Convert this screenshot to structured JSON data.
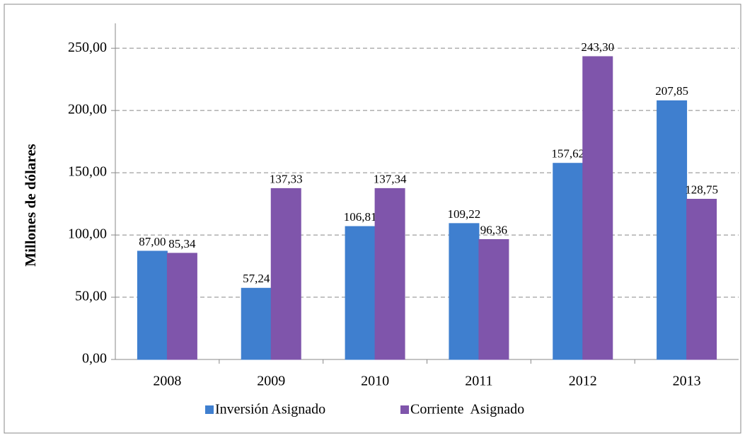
{
  "chart_data": {
    "type": "bar",
    "y_label": "Millones de dólares",
    "categories": [
      "2008",
      "2009",
      "2010",
      "2011",
      "2012",
      "2013"
    ],
    "series": [
      {
        "name": "Inversión Asignado",
        "color": "#3f7fcf",
        "values": [
          87.0,
          57.24,
          106.81,
          109.22,
          157.62,
          207.85
        ],
        "value_labels": [
          "87,00",
          "57,24",
          "106,81",
          "109,22",
          "157,62",
          "207,85"
        ]
      },
      {
        "name": "Corriente  Asignado",
        "color": "#7f55ab",
        "values": [
          85.34,
          137.33,
          137.34,
          96.36,
          243.3,
          128.75
        ],
        "value_labels": [
          "85,34",
          "137,33",
          "137,34",
          "96,36",
          "243,30",
          "128,75"
        ]
      }
    ],
    "ylim": [
      0,
      270
    ],
    "yticks": [
      {
        "value": 0,
        "label": "0,00"
      },
      {
        "value": 50,
        "label": "50,00"
      },
      {
        "value": 100,
        "label": "100,00"
      },
      {
        "value": 150,
        "label": "150,00"
      },
      {
        "value": 200,
        "label": "200,00"
      },
      {
        "value": 250,
        "label": "250,00"
      }
    ],
    "grid": true,
    "legend": "bottom"
  }
}
